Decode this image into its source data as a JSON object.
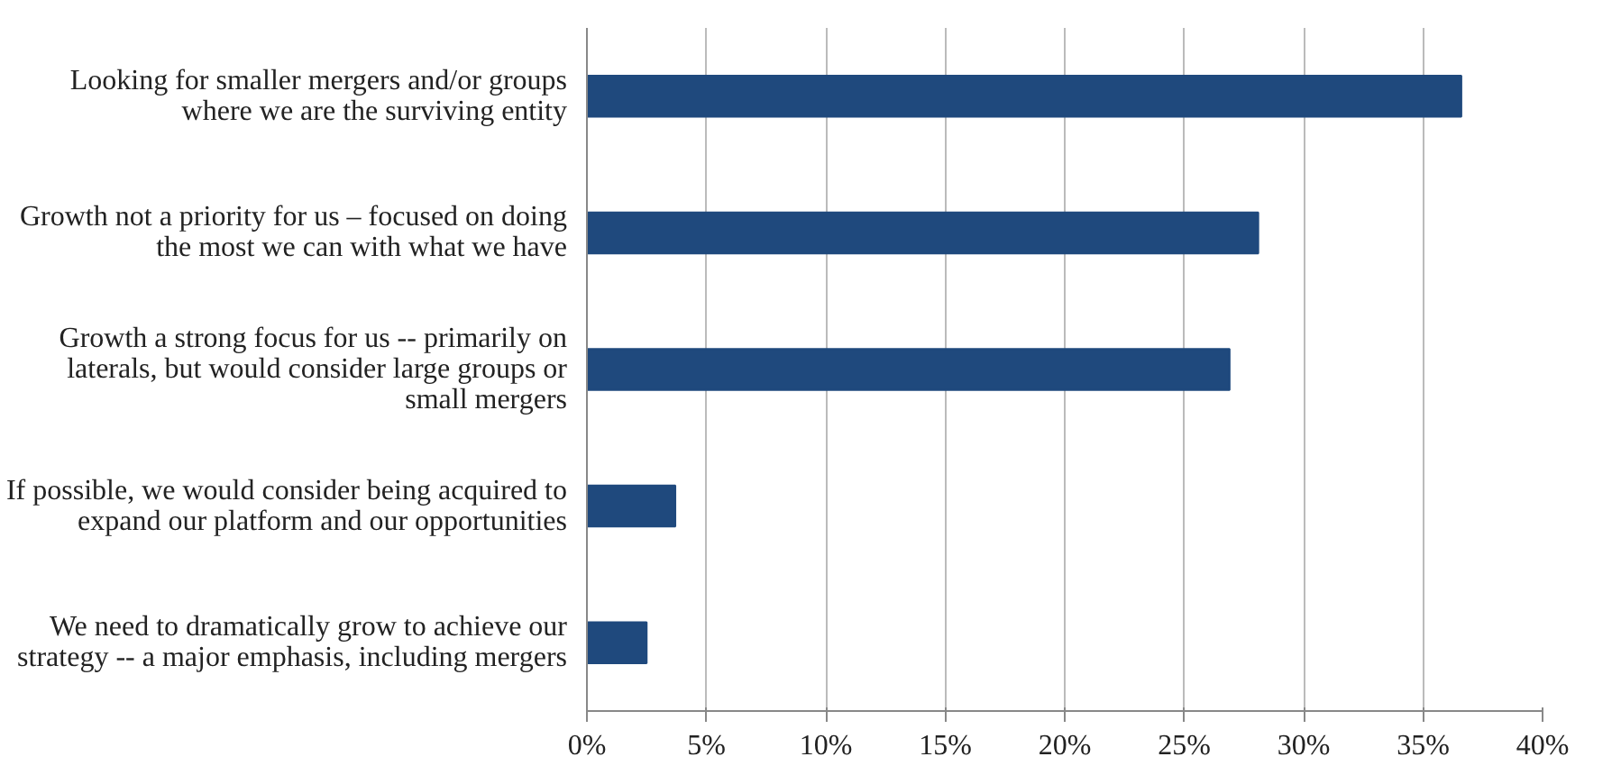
{
  "chart_data": {
    "type": "bar",
    "orientation": "horizontal",
    "categories": [
      "Looking for smaller mergers and/or groups\nwhere we are the surviving entity",
      "Growth not a priority for us – focused on doing\nthe most we can with what we have",
      "Growth a strong focus for us -- primarily on\nlaterals, but would consider large groups or\nsmall mergers",
      "If possible, we would consider being acquired to\nexpand our platform and our opportunities",
      "We need to dramatically grow to achieve our\nstrategy -- a major emphasis, including mergers"
    ],
    "values": [
      36.6,
      28.1,
      26.9,
      3.7,
      2.5
    ],
    "color": "#1f497d",
    "xlim": [
      0,
      40
    ],
    "xticks": [
      {
        "value": 0,
        "label": "0%"
      },
      {
        "value": 5,
        "label": "5%"
      },
      {
        "value": 10,
        "label": "10%"
      },
      {
        "value": 15,
        "label": "15%"
      },
      {
        "value": 20,
        "label": "20%"
      },
      {
        "value": 25,
        "label": "25%"
      },
      {
        "value": 30,
        "label": "30%"
      },
      {
        "value": 35,
        "label": "35%"
      },
      {
        "value": 40,
        "label": "40%"
      }
    ],
    "grid": "x"
  }
}
